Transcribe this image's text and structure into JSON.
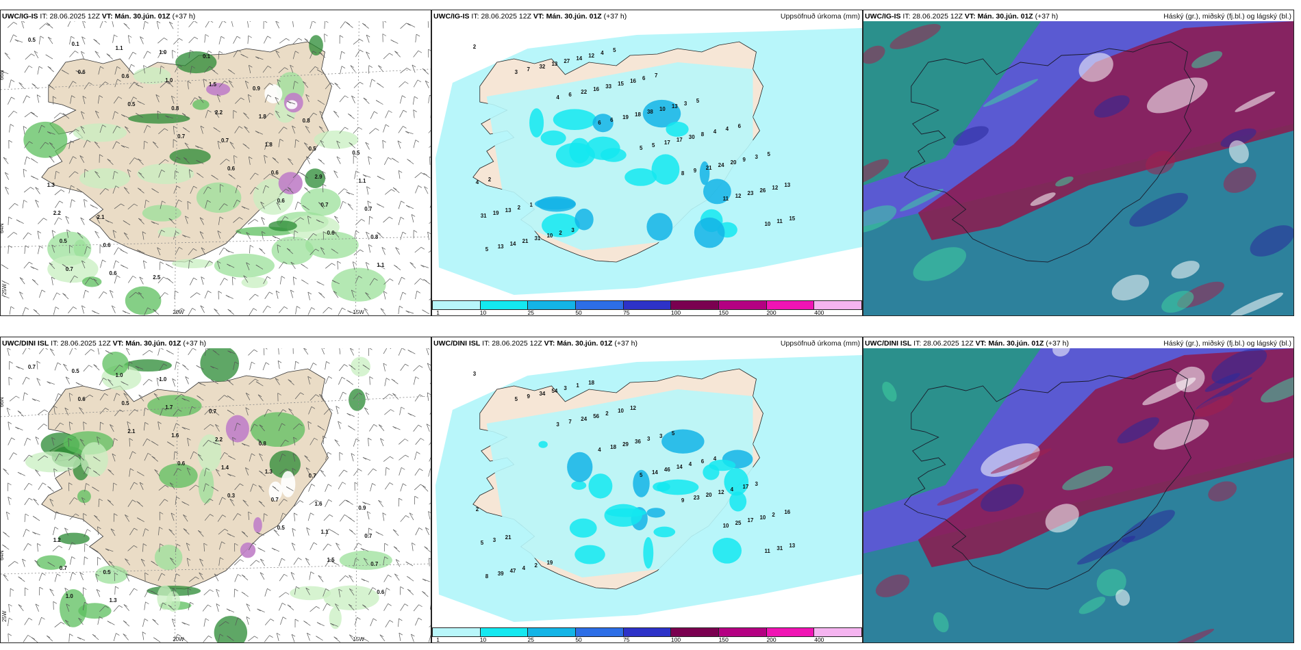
{
  "panels": [
    {
      "id": "top-left",
      "model": "UWC/IG-IS",
      "it_label": "IT:",
      "it": "28.06.2025 12Z",
      "vt_label": "VT:",
      "vt": "Mán. 30.jún. 01Z",
      "lead": "(+37 h)",
      "right": "",
      "kind": "wind"
    },
    {
      "id": "top-middle",
      "model": "UWC/IG-IS",
      "it_label": "IT:",
      "it": "28.06.2025 12Z",
      "vt_label": "VT:",
      "vt": "Mán. 30.jún. 01Z",
      "lead": "(+37 h)",
      "right": "Uppsöfnuð úrkoma (mm)",
      "kind": "precip"
    },
    {
      "id": "top-right",
      "model": "UWC/IG-IS",
      "it_label": "IT:",
      "it": "28.06.2025 12Z",
      "vt_label": "VT:",
      "vt": "Mán. 30.jún. 01Z",
      "lead": "(+37 h)",
      "right": "Háský (gr.), miðský (fj.bl.) og lágský (bl.)",
      "kind": "cloud"
    },
    {
      "id": "bottom-left",
      "model": "UWC/DINI ISL",
      "it_label": "IT:",
      "it": "28.06.2025 12Z",
      "vt_label": "VT:",
      "vt": "Mán. 30.jún. 01Z",
      "lead": "(+37 h)",
      "right": "",
      "kind": "wind"
    },
    {
      "id": "bottom-middle",
      "model": "UWC/DINI ISL",
      "it_label": "IT:",
      "it": "28.06.2025 12Z",
      "vt_label": "VT:",
      "vt": "Mán. 30.jún. 01Z",
      "lead": "(+37 h)",
      "right": "Uppsöfnuð úrkoma (mm)",
      "kind": "precip"
    },
    {
      "id": "bottom-right",
      "model": "UWC/DINI ISL",
      "it_label": "IT:",
      "it": "28.06.2025 12Z",
      "vt_label": "VT:",
      "vt": "Mán. 30.jún. 01Z",
      "lead": "(+37 h)",
      "right": "Háský (gr.), miðský (fj.bl.) og lágský (bl.)",
      "kind": "cloud"
    }
  ],
  "colorbar": {
    "labels": [
      "1",
      "10",
      "25",
      "50",
      "75",
      "100",
      "150",
      "200",
      "400"
    ],
    "colors": [
      "#b8f6fa",
      "#14e8f0",
      "#14b4e6",
      "#2d6ee6",
      "#2d32c8",
      "#7a0050",
      "#b40082",
      "#f014b4",
      "#f5b4f0"
    ]
  },
  "axis_labels": {
    "lon_20w": "20W",
    "lon_15w": "15W",
    "lat_66n": "66N",
    "lat_64n": "64N",
    "lat_25w": "25W"
  },
  "wind_values_top": [
    "0.5",
    "0.6",
    "0.5",
    "0.7",
    "0.6",
    "0.6",
    "0.6",
    "1.1",
    "0.1",
    "0.6",
    "0.8",
    "0.7",
    "0.6",
    "0.7",
    "0.8",
    "0.7",
    "1.1",
    "1.0",
    "2.2",
    "1.8",
    "2.9",
    "0.7",
    "0.5",
    "0.6",
    "1.0",
    "1.5",
    "1.8",
    "0.5",
    "1.1",
    "2.2",
    "0.6",
    "2.5",
    "0.1",
    "0.9",
    "0.8",
    "0.5",
    "1.3",
    "2.1"
  ],
  "wind_values_bottom": [
    "0.7",
    "0.6",
    "2.1",
    "0.6",
    "0.3",
    "0.5",
    "1.5",
    "0.6",
    "0.5",
    "0.5",
    "1.6",
    "1.4",
    "0.7",
    "1.1",
    "0.7",
    "1.0",
    "1.0",
    "1.7",
    "2.2",
    "1.3",
    "1.6",
    "0.7",
    "0.7",
    "1.3",
    "1.0",
    "0.7",
    "0.8",
    "0.7",
    "0.9",
    "1.2",
    "0.5"
  ],
  "precip_values_top": [
    "2",
    "3",
    "4",
    "6",
    "5",
    "8",
    "11",
    "10",
    "5",
    "7",
    "6",
    "6",
    "5",
    "9",
    "12",
    "11",
    "13",
    "32",
    "22",
    "19",
    "17",
    "21",
    "23",
    "15",
    "14",
    "13",
    "16",
    "18",
    "17",
    "24",
    "26",
    "31",
    "21",
    "27",
    "33",
    "38",
    "30",
    "20",
    "12",
    "19",
    "31",
    "14",
    "15",
    "10",
    "8",
    "9",
    "13",
    "13",
    "10",
    "12",
    "16",
    "13",
    "4",
    "3",
    "4",
    "2",
    "2",
    "4",
    "6",
    "3",
    "4",
    "5",
    "2",
    "1",
    "3",
    "5",
    "7",
    "5",
    "6"
  ],
  "precip_values_bottom": [
    "3",
    "5",
    "3",
    "4",
    "5",
    "9",
    "10",
    "11",
    "8",
    "9",
    "7",
    "18",
    "14",
    "23",
    "25",
    "31",
    "39",
    "34",
    "24",
    "29",
    "46",
    "20",
    "17",
    "13",
    "47",
    "54",
    "56",
    "36",
    "14",
    "12",
    "10",
    "5",
    "4",
    "3",
    "2",
    "3",
    "4",
    "4",
    "2",
    "3",
    "2",
    "1",
    "10",
    "3",
    "6",
    "17",
    "16",
    "21",
    "19",
    "18",
    "12",
    "5",
    "4",
    "3",
    "2"
  ]
}
